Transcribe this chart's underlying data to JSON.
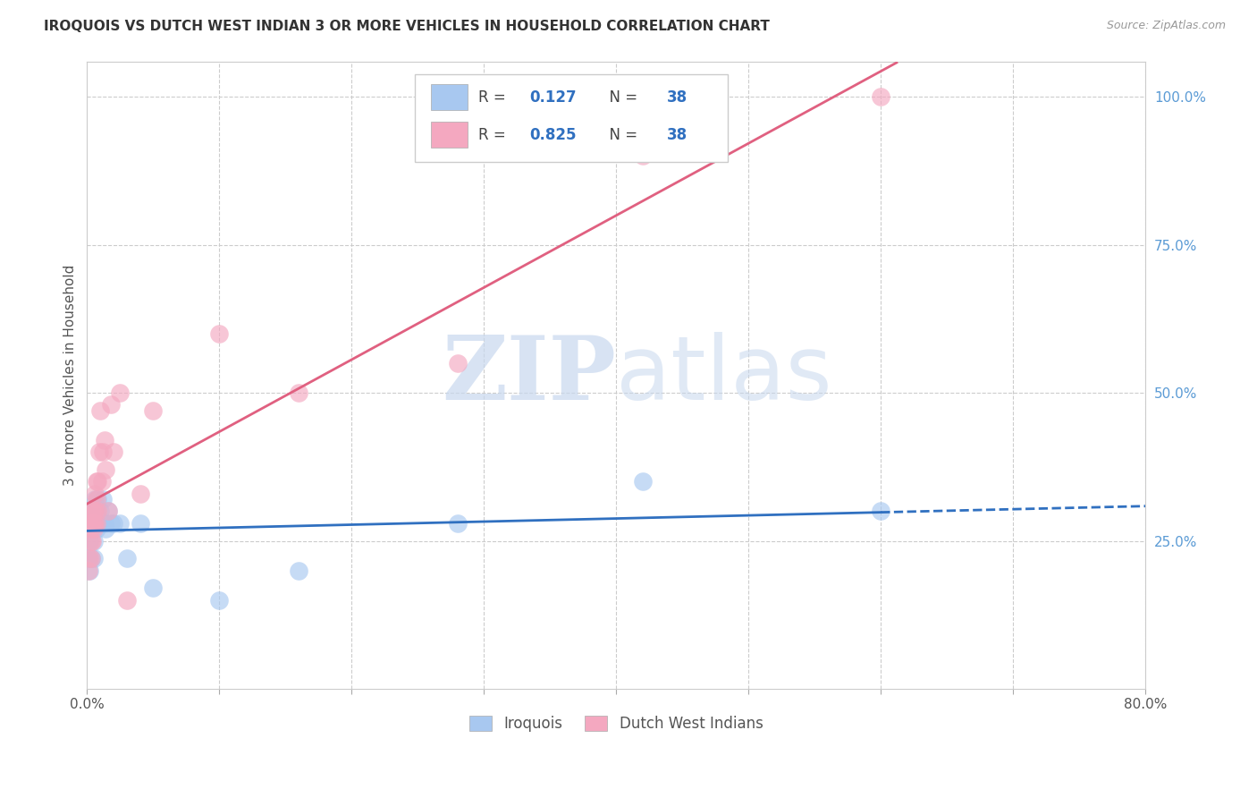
{
  "title": "IROQUOIS VS DUTCH WEST INDIAN 3 OR MORE VEHICLES IN HOUSEHOLD CORRELATION CHART",
  "source": "Source: ZipAtlas.com",
  "ylabel": "3 or more Vehicles in Household",
  "xlim": [
    0.0,
    0.8
  ],
  "ylim": [
    0.0,
    1.06
  ],
  "iroquois_R": 0.127,
  "iroquois_N": 38,
  "dutch_R": 0.825,
  "dutch_N": 38,
  "iroquois_color": "#a8c8f0",
  "dutch_color": "#f4a8c0",
  "iroquois_line_color": "#3070c0",
  "dutch_line_color": "#e06080",
  "legend_r_color": "#3070c0",
  "legend_n_color": "#3070c0",
  "watermark_color": "#c8d8ee",
  "iroquois_x": [
    0.001,
    0.002,
    0.002,
    0.003,
    0.003,
    0.003,
    0.004,
    0.004,
    0.004,
    0.005,
    0.005,
    0.005,
    0.006,
    0.006,
    0.006,
    0.007,
    0.007,
    0.007,
    0.008,
    0.008,
    0.009,
    0.01,
    0.011,
    0.012,
    0.013,
    0.014,
    0.016,
    0.018,
    0.02,
    0.025,
    0.03,
    0.04,
    0.05,
    0.1,
    0.16,
    0.28,
    0.42,
    0.6
  ],
  "iroquois_y": [
    0.22,
    0.25,
    0.2,
    0.28,
    0.3,
    0.22,
    0.3,
    0.28,
    0.27,
    0.28,
    0.25,
    0.22,
    0.32,
    0.3,
    0.28,
    0.3,
    0.28,
    0.27,
    0.28,
    0.32,
    0.28,
    0.3,
    0.28,
    0.32,
    0.28,
    0.27,
    0.3,
    0.28,
    0.28,
    0.28,
    0.22,
    0.28,
    0.17,
    0.15,
    0.2,
    0.28,
    0.35,
    0.3
  ],
  "dutch_x": [
    0.001,
    0.002,
    0.002,
    0.003,
    0.003,
    0.003,
    0.004,
    0.004,
    0.004,
    0.005,
    0.005,
    0.005,
    0.006,
    0.006,
    0.006,
    0.007,
    0.007,
    0.007,
    0.008,
    0.008,
    0.009,
    0.01,
    0.011,
    0.012,
    0.013,
    0.014,
    0.016,
    0.018,
    0.02,
    0.025,
    0.03,
    0.04,
    0.05,
    0.1,
    0.16,
    0.28,
    0.42,
    0.6
  ],
  "dutch_y": [
    0.2,
    0.22,
    0.28,
    0.25,
    0.27,
    0.22,
    0.28,
    0.3,
    0.25,
    0.28,
    0.3,
    0.27,
    0.3,
    0.33,
    0.28,
    0.32,
    0.35,
    0.28,
    0.3,
    0.35,
    0.4,
    0.47,
    0.35,
    0.4,
    0.42,
    0.37,
    0.3,
    0.48,
    0.4,
    0.5,
    0.15,
    0.33,
    0.47,
    0.6,
    0.5,
    0.55,
    0.9,
    1.0
  ]
}
